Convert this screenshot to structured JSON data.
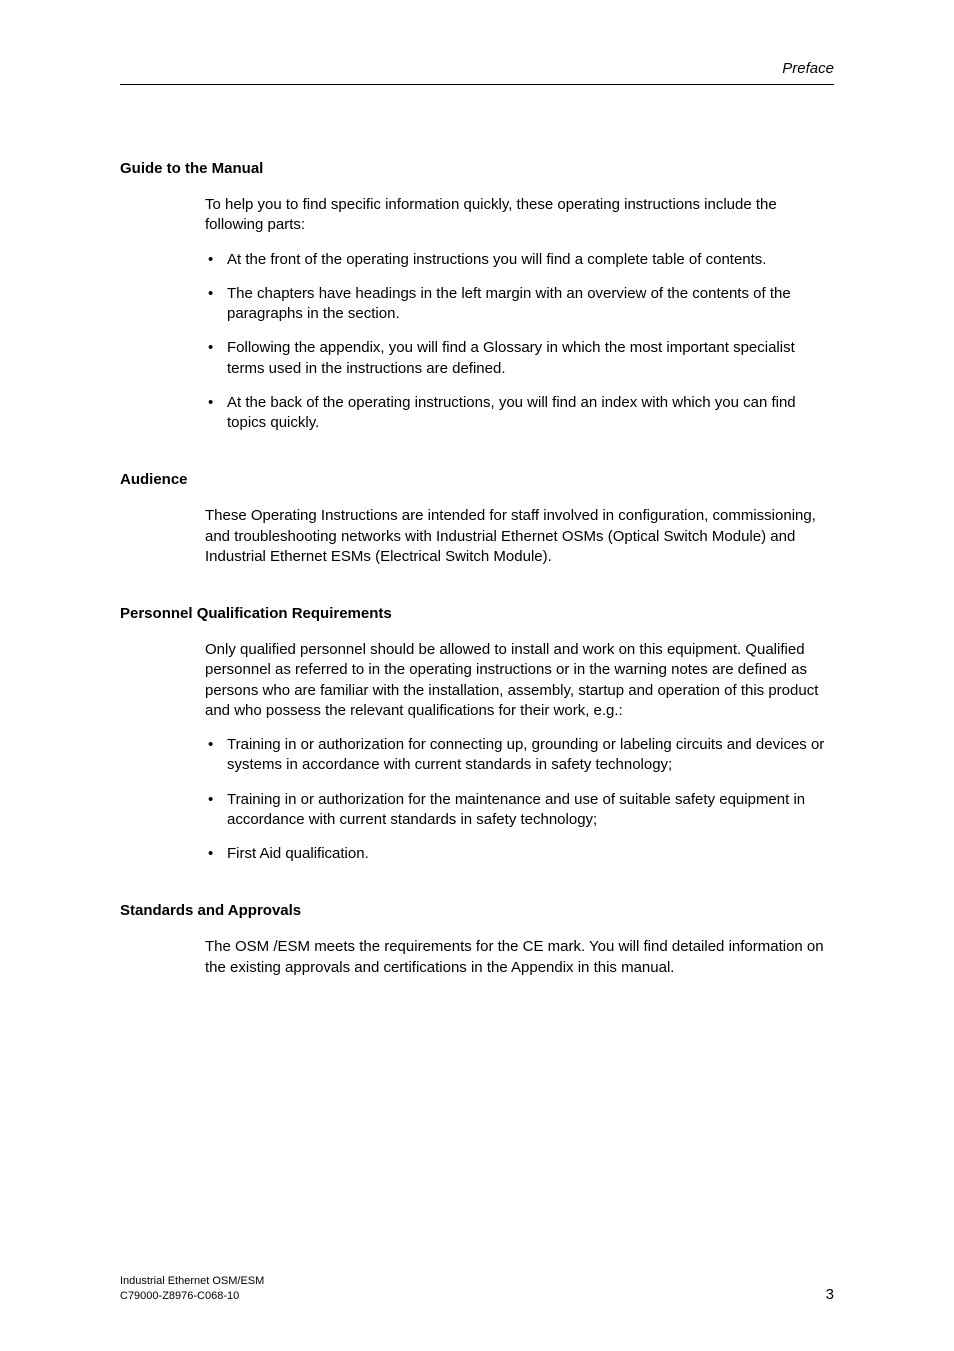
{
  "header": {
    "running_title": "Preface"
  },
  "sections": {
    "s1": {
      "heading": "Guide to the Manual",
      "intro": "To help you to find specific information quickly, these operating instructions include the following parts:",
      "bullets": [
        "At the front of the operating instructions you will find a complete table of contents.",
        "The chapters have headings in the left margin with an overview of the contents of the paragraphs in the section.",
        "Following the appendix, you will find a Glossary in which the most important specialist terms used in the instructions are defined.",
        "At the back of the operating instructions, you will find an index with which you can find topics quickly."
      ]
    },
    "s2": {
      "heading": "Audience",
      "para": "These Operating Instructions are intended for staff involved in configuration, commissioning, and troubleshooting networks with Industrial Ethernet OSMs (Optical Switch Module) and Industrial Ethernet ESMs (Electrical Switch Module)."
    },
    "s3": {
      "heading": "Personnel Qualification Requirements",
      "intro": "Only qualified personnel should be allowed to install and work on this equipment. Qualified personnel as referred to in the operating instructions or in the warning notes are defined as persons who are familiar with the installation, assembly, startup and operation of this product and who possess the relevant qualifications for their work, e.g.:",
      "bullets": [
        "Training in or authorization for connecting up, grounding or labeling circuits and devices or systems in accordance with current standards in safety technology;",
        "Training in or authorization for the maintenance and use of suitable safety equipment in accordance with current standards in safety technology;",
        "First Aid qualification."
      ]
    },
    "s4": {
      "heading": "Standards and Approvals",
      "para": "The OSM /ESM meets the requirements for the CE mark. You will find detailed information on the existing approvals and certifications in the Appendix in this manual."
    }
  },
  "footer": {
    "line1": "Industrial Ethernet OSM/ESM",
    "line2": "C79000-Z8976-C068-10",
    "page_number": "3"
  }
}
